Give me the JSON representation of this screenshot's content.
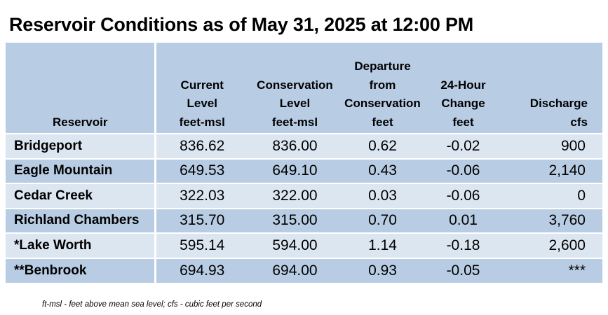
{
  "title": "Reservoir Conditions as of May 31, 2025 at 12:00 PM",
  "columns": [
    {
      "line1": "",
      "line2": "",
      "line3": "",
      "line4": "Reservoir"
    },
    {
      "line1": "",
      "line2": "Current",
      "line3": "Level",
      "line4": "feet-msl"
    },
    {
      "line1": "",
      "line2": "Conservation",
      "line3": "Level",
      "line4": "feet-msl"
    },
    {
      "line1": "Departure",
      "line2": "from",
      "line3": "Conservation",
      "line4": "feet"
    },
    {
      "line1": "",
      "line2": "24-Hour",
      "line3": "Change",
      "line4": "feet"
    },
    {
      "line1": "",
      "line2": "",
      "line3": "Discharge",
      "line4": "cfs"
    }
  ],
  "rows": [
    {
      "reservoir": "Bridgeport",
      "current": "836.62",
      "conservation": "836.00",
      "departure": "0.62",
      "change": "-0.02",
      "discharge": "900"
    },
    {
      "reservoir": "Eagle Mountain",
      "current": "649.53",
      "conservation": "649.10",
      "departure": "0.43",
      "change": "-0.06",
      "discharge": "2,140"
    },
    {
      "reservoir": "Cedar Creek",
      "current": "322.03",
      "conservation": "322.00",
      "departure": "0.03",
      "change": "-0.06",
      "discharge": "0"
    },
    {
      "reservoir": "Richland Chambers",
      "current": "315.70",
      "conservation": "315.00",
      "departure": "0.70",
      "change": "0.01",
      "discharge": "3,760"
    },
    {
      "reservoir": "*Lake Worth",
      "current": "595.14",
      "conservation": "594.00",
      "departure": "1.14",
      "change": "-0.18",
      "discharge": "2,600"
    },
    {
      "reservoir": "**Benbrook",
      "current": "694.93",
      "conservation": "694.00",
      "departure": "0.93",
      "change": "-0.05",
      "discharge": "***"
    }
  ],
  "footnote": "ft-msl - feet above mean sea level; cfs - cubic feet per second",
  "colors": {
    "header_bg": "#b8cce4",
    "row_light": "#dce6f1",
    "row_dark": "#b8cce4",
    "separator": "#ffffff"
  }
}
